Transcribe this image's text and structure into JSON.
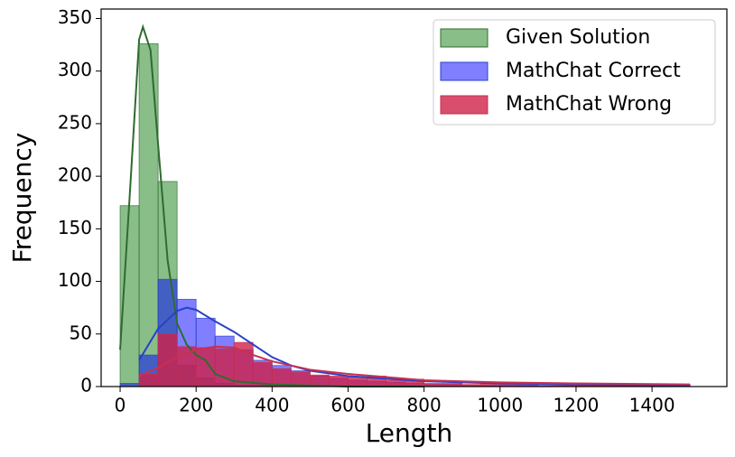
{
  "chart_data": {
    "type": "histogram",
    "xlabel": "Length",
    "ylabel": "Frequency",
    "bins": [
      0,
      50,
      100,
      150,
      200,
      250,
      300,
      350,
      400,
      450,
      500,
      550,
      600,
      650,
      700,
      750,
      800,
      850,
      900,
      950,
      1000,
      1050,
      1100,
      1150,
      1200,
      1250,
      1300,
      1350,
      1400,
      1450,
      1500
    ],
    "xlim": [
      -50,
      1597
    ],
    "ylim": [
      0,
      359
    ],
    "xticks": [
      0,
      200,
      400,
      600,
      800,
      1000,
      1200,
      1400
    ],
    "yticks": [
      0,
      50,
      100,
      150,
      200,
      250,
      300,
      350
    ],
    "legend": "upper right",
    "series": [
      {
        "name": "Given Solution",
        "color": "#3a923a",
        "line_color": "#2f6b2f",
        "values": [
          172,
          326,
          195,
          20,
          8,
          3,
          1,
          1,
          0,
          0,
          0,
          0,
          0,
          0,
          0,
          0,
          0,
          0,
          0,
          0,
          0,
          0,
          0,
          0,
          0,
          0,
          0,
          0,
          0,
          0
        ],
        "kde": {
          "x": [
            0,
            25,
            50,
            60,
            80,
            100,
            125,
            150,
            175,
            200,
            225,
            250,
            300,
            400,
            600,
            800
          ],
          "y": [
            35,
            180,
            330,
            342,
            320,
            230,
            120,
            60,
            40,
            30,
            25,
            12,
            5,
            2,
            0,
            0
          ]
        }
      },
      {
        "name": "MathChat Correct",
        "color": "#0000ff",
        "line_color": "#2a40c8",
        "values": [
          3,
          30,
          102,
          83,
          65,
          48,
          35,
          25,
          20,
          15,
          10,
          8,
          6,
          5,
          4,
          3,
          2,
          2,
          1,
          1,
          1,
          1,
          1,
          1,
          1,
          1,
          1,
          1,
          1,
          2
        ],
        "kde": {
          "x": [
            50,
            100,
            150,
            175,
            200,
            250,
            300,
            350,
            400,
            450,
            500,
            600,
            800,
            1000,
            1200,
            1500
          ],
          "y": [
            25,
            55,
            72,
            75,
            73,
            62,
            52,
            40,
            28,
            20,
            15,
            10,
            5,
            3,
            2,
            1
          ]
        }
      },
      {
        "name": "MathChat Wrong",
        "color": "#d02048",
        "line_color": "#c83050",
        "values": [
          0,
          12,
          50,
          38,
          37,
          36,
          42,
          23,
          17,
          14,
          11,
          10,
          9,
          10,
          6,
          7,
          3,
          3,
          2,
          3,
          2,
          2,
          1,
          1,
          1,
          1,
          1,
          1,
          1,
          1
        ],
        "kde": {
          "x": [
            50,
            100,
            150,
            200,
            250,
            300,
            350,
            400,
            500,
            600,
            700,
            800,
            1000,
            1200,
            1500
          ],
          "y": [
            10,
            18,
            28,
            35,
            38,
            37,
            30,
            24,
            16,
            12,
            9,
            6,
            4,
            3,
            2
          ]
        }
      }
    ]
  }
}
